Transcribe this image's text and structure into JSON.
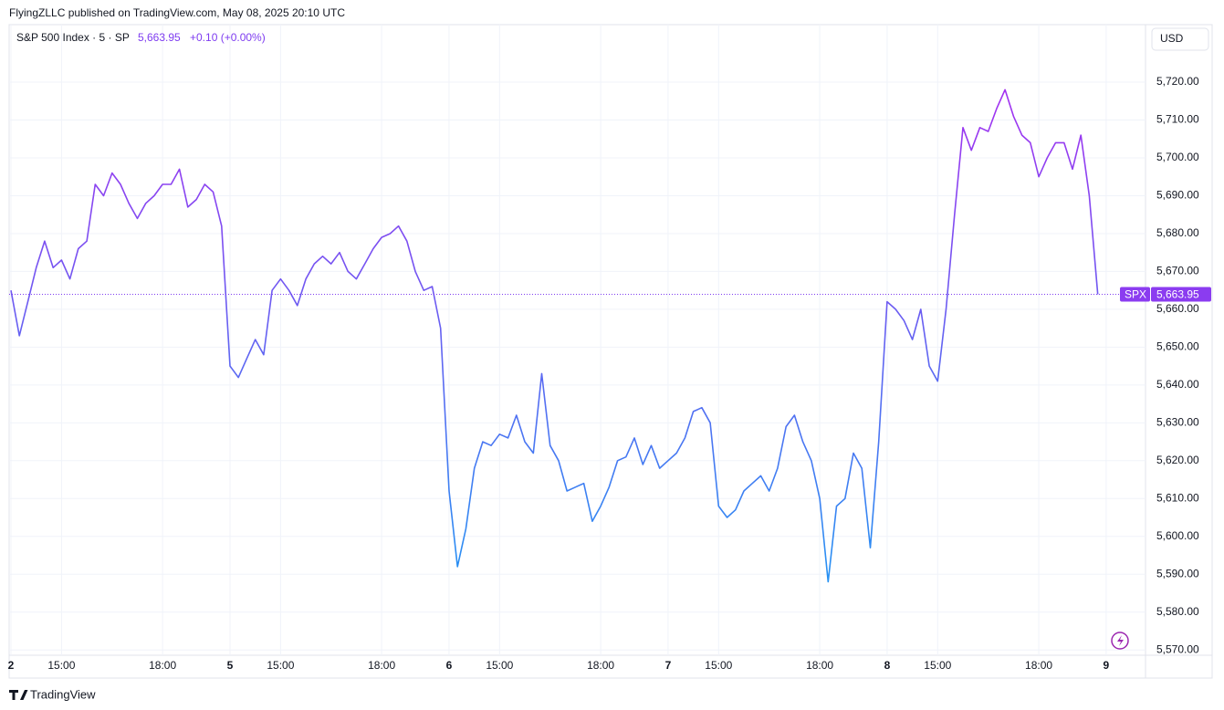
{
  "header": {
    "attribution": "FlyingZLLC published on TradingView.com, May 08, 2025 20:10 UTC"
  },
  "footer": {
    "brand": "TradingView"
  },
  "chart_data": {
    "type": "line",
    "series": [
      {
        "name": "S&P 500 Index · 5 · SP",
        "color": "#a52ff0",
        "color_bottom": "#2196f3",
        "values": [
          5665,
          5653,
          5662,
          5671,
          5678,
          5671,
          5673,
          5668,
          5676,
          5678,
          5693,
          5690,
          5696,
          5693,
          5688,
          5684,
          5688,
          5690,
          5693,
          5693,
          5697,
          5687,
          5689,
          5693,
          5691,
          5682,
          5645,
          5642,
          5647,
          5652,
          5648,
          5665,
          5668,
          5665,
          5661,
          5668,
          5672,
          5674,
          5672,
          5675,
          5670,
          5668,
          5672,
          5676,
          5679,
          5680,
          5682,
          5678,
          5670,
          5665,
          5666,
          5655,
          5612,
          5592,
          5602,
          5618,
          5625,
          5624,
          5627,
          5626,
          5632,
          5625,
          5622,
          5643,
          5624,
          5620,
          5612,
          5613,
          5614,
          5604,
          5608,
          5613,
          5620,
          5621,
          5626,
          5619,
          5624,
          5618,
          5620,
          5622,
          5626,
          5633,
          5634,
          5630,
          5608,
          5605,
          5607,
          5612,
          5614,
          5616,
          5612,
          5618,
          5629,
          5632,
          5625,
          5620,
          5610,
          5588,
          5608,
          5610,
          5622,
          5618,
          5597,
          5625,
          5662,
          5660,
          5657,
          5652,
          5660,
          5645,
          5641,
          5660,
          5685,
          5708,
          5702,
          5708,
          5707,
          5713,
          5718,
          5711,
          5706,
          5704,
          5695,
          5700,
          5704,
          5704,
          5697,
          5706,
          5690,
          5663.95,
          null
        ]
      }
    ],
    "categories": [
      "2",
      null,
      null,
      null,
      null,
      null,
      "15:00",
      null,
      null,
      null,
      null,
      null,
      null,
      null,
      null,
      null,
      null,
      null,
      "18:00",
      null,
      null,
      null,
      null,
      null,
      null,
      null,
      "5",
      null,
      null,
      null,
      null,
      null,
      "15:00",
      null,
      null,
      null,
      null,
      null,
      null,
      null,
      null,
      null,
      null,
      null,
      "18:00",
      null,
      null,
      null,
      null,
      null,
      null,
      null,
      "6",
      null,
      null,
      null,
      null,
      null,
      "15:00",
      null,
      null,
      null,
      null,
      null,
      null,
      null,
      null,
      null,
      null,
      null,
      "18:00",
      null,
      null,
      null,
      null,
      null,
      null,
      null,
      "7",
      null,
      null,
      null,
      null,
      null,
      "15:00",
      null,
      null,
      null,
      null,
      null,
      null,
      null,
      null,
      null,
      null,
      null,
      "18:00",
      null,
      null,
      null,
      null,
      null,
      null,
      null,
      "8",
      null,
      null,
      null,
      null,
      null,
      "15:00",
      null,
      null,
      null,
      null,
      null,
      null,
      null,
      null,
      null,
      null,
      null,
      "18:00",
      null,
      null,
      null,
      null,
      null,
      null,
      null,
      "9"
    ],
    "last_price": {
      "value": 5663.95,
      "label": "5,663.95"
    },
    "change": "+0.10 (+0.00%)",
    "symbol": "SPX",
    "currency": "USD",
    "ylim": [
      5568.6,
      5735.2
    ],
    "yticks": [
      {
        "value": 5570,
        "label": "5,570.00"
      },
      {
        "value": 5580,
        "label": "5,580.00"
      },
      {
        "value": 5590,
        "label": "5,590.00"
      },
      {
        "value": 5600,
        "label": "5,600.00"
      },
      {
        "value": 5610,
        "label": "5,610.00"
      },
      {
        "value": 5620,
        "label": "5,620.00"
      },
      {
        "value": 5630,
        "label": "5,630.00"
      },
      {
        "value": 5640,
        "label": "5,640.00"
      },
      {
        "value": 5650,
        "label": "5,650.00"
      },
      {
        "value": 5660,
        "label": "5,660.00"
      },
      {
        "value": 5670,
        "label": "5,670.00"
      },
      {
        "value": 5680,
        "label": "5,680.00"
      },
      {
        "value": 5690,
        "label": "5,690.00"
      },
      {
        "value": 5700,
        "label": "5,700.00"
      },
      {
        "value": 5710,
        "label": "5,710.00"
      },
      {
        "value": 5720,
        "label": "5,720.00"
      }
    ],
    "grid": true
  }
}
